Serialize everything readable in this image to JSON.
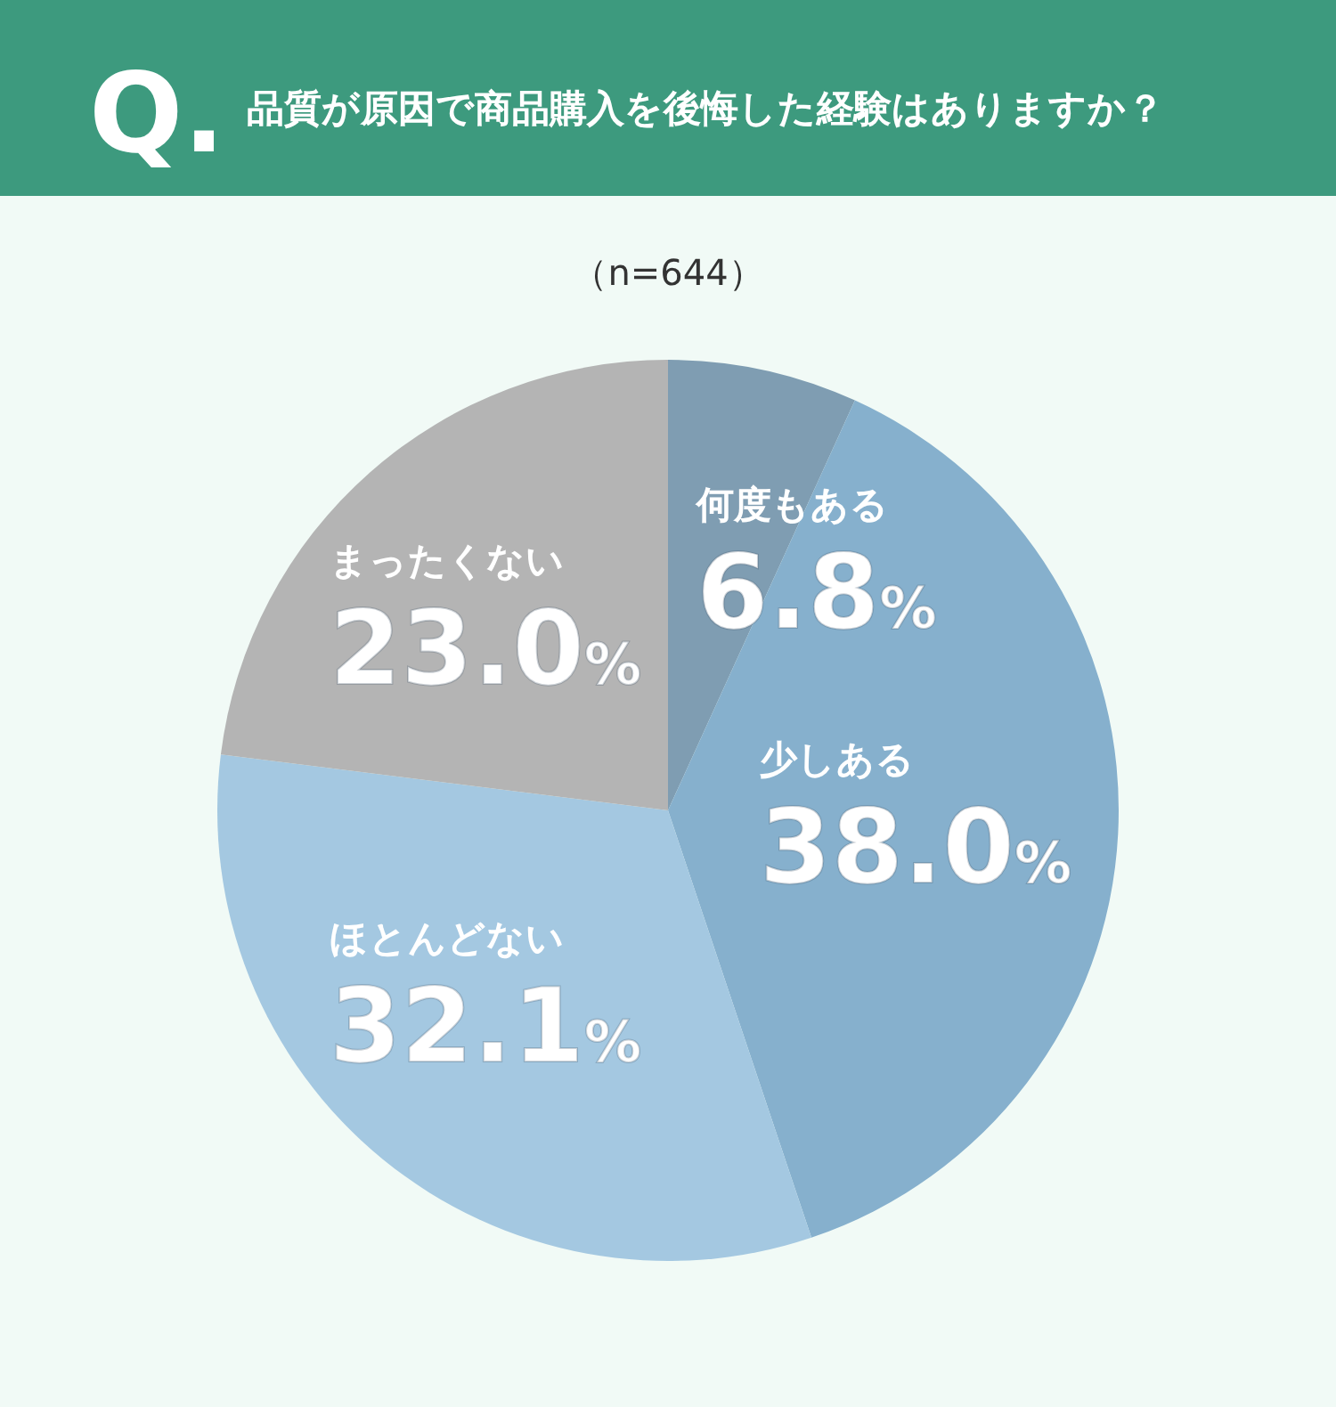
{
  "chart_data": {
    "type": "pie",
    "title": "品質が原因で商品購入を後悔した経験はありますか？",
    "subtitle": "（n=644）",
    "annotations": [
      "Q."
    ],
    "categories": [
      "何度もある",
      "少しある",
      "ほとんどない",
      "まったくない"
    ],
    "values": [
      6.8,
      38.0,
      32.1,
      23.0
    ],
    "value_labels": [
      "6.8%",
      "38.0%",
      "32.1%",
      "23.0%"
    ],
    "colors": [
      "#7f9db2",
      "#86b0cd",
      "#a4c8e1",
      "#b4b4b4"
    ]
  }
}
